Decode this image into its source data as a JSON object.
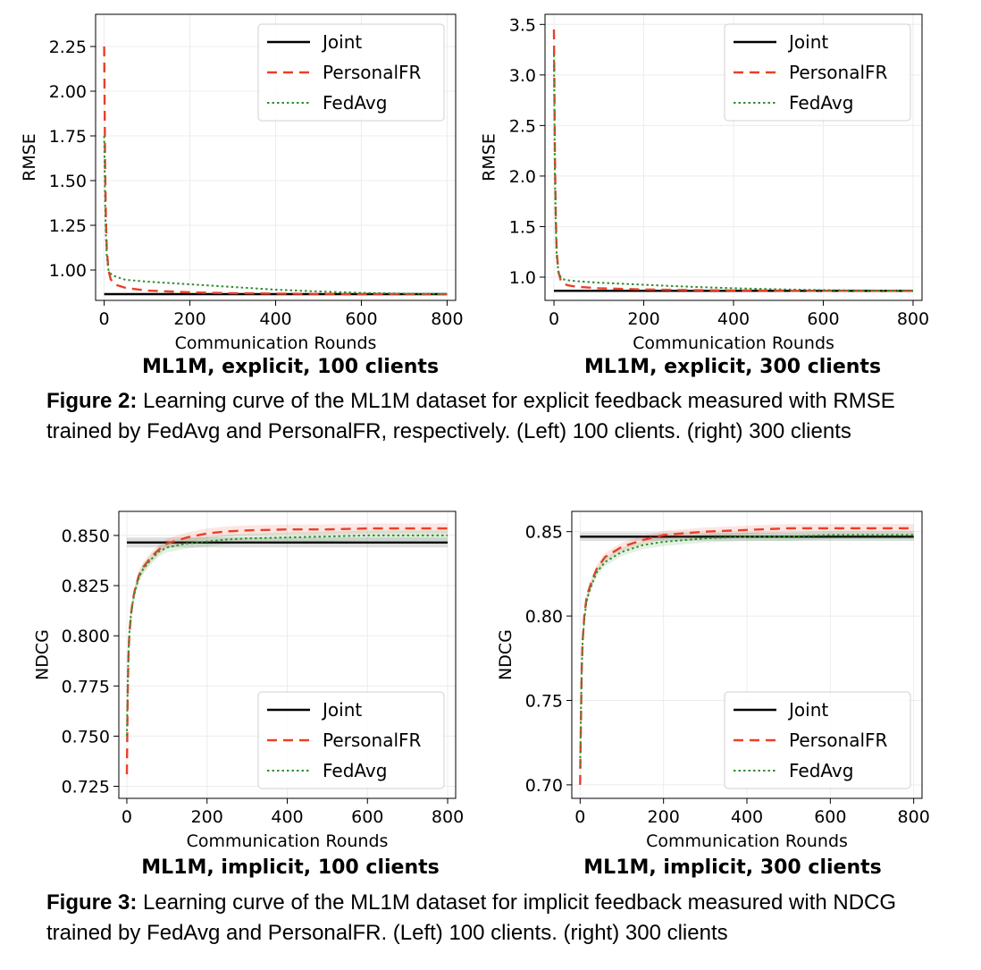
{
  "chart_data": [
    {
      "type": "line",
      "panel_title": "ML1M, explicit, 100 clients",
      "xlabel": "Communication Rounds",
      "ylabel": "RMSE",
      "xlim": [
        -20,
        820
      ],
      "ylim": [
        0.83,
        2.43
      ],
      "xticks": [
        0,
        200,
        400,
        600,
        800
      ],
      "yticks": [
        1.0,
        1.25,
        1.5,
        1.75,
        2.0,
        2.25
      ],
      "ytick_labels": [
        "1.00",
        "1.25",
        "1.50",
        "1.75",
        "2.00",
        "2.25"
      ],
      "grid": true,
      "legend_position": "top-right",
      "series": [
        {
          "name": "Joint",
          "color": "#000000",
          "dash": "solid",
          "x": [
            0,
            800
          ],
          "y": [
            0.865,
            0.865
          ]
        },
        {
          "name": "PersonalFR",
          "color": "#e8402a",
          "dash": "dashed",
          "x": [
            0,
            2,
            4,
            6,
            10,
            15,
            20,
            30,
            50,
            100,
            200,
            300,
            400,
            500,
            600,
            700,
            800
          ],
          "y": [
            2.25,
            1.6,
            1.3,
            1.12,
            1.0,
            0.95,
            0.93,
            0.915,
            0.9,
            0.885,
            0.875,
            0.87,
            0.868,
            0.866,
            0.865,
            0.864,
            0.864
          ]
        },
        {
          "name": "FedAvg",
          "color": "#2f8f2f",
          "dash": "dotted",
          "x": [
            0,
            2,
            4,
            6,
            10,
            15,
            20,
            30,
            50,
            100,
            200,
            300,
            400,
            500,
            600,
            700,
            800
          ],
          "y": [
            1.75,
            1.4,
            1.2,
            1.08,
            1.0,
            0.98,
            0.97,
            0.96,
            0.945,
            0.935,
            0.92,
            0.905,
            0.89,
            0.88,
            0.872,
            0.868,
            0.866
          ]
        }
      ]
    },
    {
      "type": "line",
      "panel_title": "ML1M, explicit, 300 clients",
      "xlabel": "Communication Rounds",
      "ylabel": "RMSE",
      "xlim": [
        -20,
        820
      ],
      "ylim": [
        0.77,
        3.6
      ],
      "xticks": [
        0,
        200,
        400,
        600,
        800
      ],
      "yticks": [
        1.0,
        1.5,
        2.0,
        2.5,
        3.0,
        3.5
      ],
      "ytick_labels": [
        "1.0",
        "1.5",
        "2.0",
        "2.5",
        "3.0",
        "3.5"
      ],
      "grid": true,
      "legend_position": "top-right",
      "series": [
        {
          "name": "Joint",
          "color": "#000000",
          "dash": "solid",
          "x": [
            0,
            800
          ],
          "y": [
            0.865,
            0.865
          ]
        },
        {
          "name": "PersonalFR",
          "color": "#e8402a",
          "dash": "dashed",
          "x": [
            0,
            2,
            4,
            6,
            10,
            15,
            20,
            30,
            50,
            100,
            200,
            300,
            400,
            500,
            600,
            700,
            800
          ],
          "y": [
            3.45,
            2.2,
            1.6,
            1.25,
            1.05,
            0.97,
            0.94,
            0.92,
            0.905,
            0.89,
            0.878,
            0.872,
            0.868,
            0.866,
            0.865,
            0.864,
            0.864
          ]
        },
        {
          "name": "FedAvg",
          "color": "#2f8f2f",
          "dash": "dotted",
          "x": [
            0,
            2,
            4,
            6,
            10,
            15,
            20,
            30,
            50,
            100,
            200,
            300,
            400,
            500,
            600,
            700,
            800
          ],
          "y": [
            3.2,
            2.0,
            1.5,
            1.2,
            1.05,
            1.0,
            0.98,
            0.97,
            0.96,
            0.945,
            0.925,
            0.905,
            0.89,
            0.88,
            0.872,
            0.868,
            0.866
          ]
        }
      ]
    },
    {
      "type": "line",
      "panel_title": "ML1M, implicit, 100 clients",
      "xlabel": "Communication Rounds",
      "ylabel": "NDCG",
      "xlim": [
        -20,
        820
      ],
      "ylim": [
        0.719,
        0.862
      ],
      "xticks": [
        0,
        200,
        400,
        600,
        800
      ],
      "yticks": [
        0.725,
        0.75,
        0.775,
        0.8,
        0.825,
        0.85
      ],
      "ytick_labels": [
        "0.725",
        "0.750",
        "0.775",
        "0.800",
        "0.825",
        "0.850"
      ],
      "grid": true,
      "legend_position": "bottom-right",
      "series": [
        {
          "name": "Joint",
          "color": "#000000",
          "dash": "solid",
          "x": [
            0,
            800
          ],
          "y": [
            0.8465,
            0.8465
          ]
        },
        {
          "name": "PersonalFR",
          "color": "#e8402a",
          "dash": "dashed",
          "x": [
            0,
            2,
            4,
            6,
            10,
            15,
            20,
            30,
            40,
            60,
            80,
            100,
            150,
            200,
            250,
            300,
            400,
            500,
            600,
            700,
            800
          ],
          "y": [
            0.731,
            0.77,
            0.79,
            0.8,
            0.81,
            0.818,
            0.823,
            0.83,
            0.834,
            0.839,
            0.843,
            0.846,
            0.849,
            0.851,
            0.852,
            0.8525,
            0.853,
            0.853,
            0.8535,
            0.8535,
            0.8535
          ]
        },
        {
          "name": "FedAvg",
          "color": "#2f8f2f",
          "dash": "dotted",
          "x": [
            0,
            2,
            4,
            6,
            10,
            15,
            20,
            30,
            40,
            60,
            80,
            100,
            150,
            200,
            250,
            300,
            400,
            500,
            600,
            700,
            800
          ],
          "y": [
            0.75,
            0.775,
            0.792,
            0.801,
            0.81,
            0.817,
            0.822,
            0.829,
            0.833,
            0.838,
            0.842,
            0.844,
            0.846,
            0.847,
            0.848,
            0.8485,
            0.849,
            0.8495,
            0.85,
            0.85,
            0.85
          ]
        }
      ]
    },
    {
      "type": "line",
      "panel_title": "ML1M, implicit, 300 clients",
      "xlabel": "Communication Rounds",
      "ylabel": "NDCG",
      "xlim": [
        -20,
        820
      ],
      "ylim": [
        0.692,
        0.862
      ],
      "xticks": [
        0,
        200,
        400,
        600,
        800
      ],
      "yticks": [
        0.7,
        0.75,
        0.8,
        0.85
      ],
      "ytick_labels": [
        "0.70",
        "0.75",
        "0.80",
        "0.85"
      ],
      "grid": true,
      "legend_position": "bottom-right",
      "series": [
        {
          "name": "Joint",
          "color": "#000000",
          "dash": "solid",
          "x": [
            0,
            800
          ],
          "y": [
            0.847,
            0.847
          ]
        },
        {
          "name": "PersonalFR",
          "color": "#e8402a",
          "dash": "dashed",
          "x": [
            0,
            2,
            4,
            6,
            10,
            15,
            20,
            30,
            40,
            60,
            80,
            100,
            150,
            200,
            250,
            300,
            400,
            500,
            600,
            700,
            800
          ],
          "y": [
            0.7,
            0.74,
            0.77,
            0.785,
            0.8,
            0.81,
            0.815,
            0.822,
            0.828,
            0.835,
            0.838,
            0.841,
            0.845,
            0.848,
            0.849,
            0.85,
            0.851,
            0.852,
            0.852,
            0.852,
            0.852
          ]
        },
        {
          "name": "FedAvg",
          "color": "#2f8f2f",
          "dash": "dotted",
          "x": [
            0,
            2,
            4,
            6,
            10,
            15,
            20,
            30,
            40,
            60,
            80,
            100,
            150,
            200,
            250,
            300,
            400,
            500,
            600,
            700,
            800
          ],
          "y": [
            0.71,
            0.745,
            0.77,
            0.785,
            0.798,
            0.808,
            0.813,
            0.82,
            0.826,
            0.832,
            0.835,
            0.838,
            0.842,
            0.844,
            0.845,
            0.846,
            0.847,
            0.847,
            0.848,
            0.848,
            0.848
          ]
        }
      ]
    }
  ],
  "captions": {
    "fig2": {
      "label": "Figure 2:",
      "text": " Learning curve of the ML1M dataset for explicit feedback measured with RMSE trained by FedAvg and PersonalFR, respectively. (Left) 100 clients. (right) 300 clients"
    },
    "fig3": {
      "label": "Figure 3:",
      "text": " Learning curve of the ML1M dataset for implicit feedback measured with NDCG trained by FedAvg and PersonalFR. (Left) 100 clients. (right) 300 clients"
    }
  }
}
